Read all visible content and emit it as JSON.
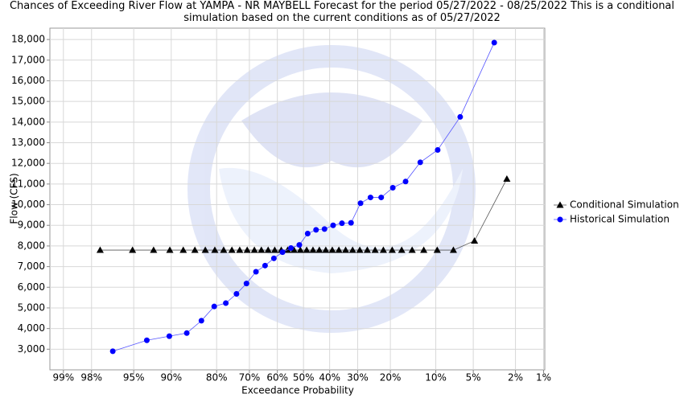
{
  "chart_data": {
    "type": "line",
    "title": "Chances of Exceeding River Flow at YAMPA - NR MAYBELL Forecast for the period 05/27/2022 - 08/25/2022 This is a conditional simulation based on the current conditions as of 05/27/2022",
    "x_label": "Exceedance Probability",
    "y_label": "Flow (CFS)",
    "x_scale": "probability",
    "xlim": [
      99.3,
      0.97
    ],
    "xticks": [
      {
        "value": 99,
        "label": "99%"
      },
      {
        "value": 98,
        "label": "98%"
      },
      {
        "value": 95,
        "label": "95%"
      },
      {
        "value": 90,
        "label": "90%"
      },
      {
        "value": 80,
        "label": "80%"
      },
      {
        "value": 70,
        "label": "70%"
      },
      {
        "value": 60,
        "label": "60%"
      },
      {
        "value": 50,
        "label": "50%"
      },
      {
        "value": 40,
        "label": "40%"
      },
      {
        "value": 30,
        "label": "30%"
      },
      {
        "value": 20,
        "label": "20%"
      },
      {
        "value": 10,
        "label": "10%"
      },
      {
        "value": 5,
        "label": "5%"
      },
      {
        "value": 2,
        "label": "2%"
      },
      {
        "value": 1,
        "label": "1%"
      }
    ],
    "ylim": [
      2000,
      18550
    ],
    "yticks": [
      {
        "value": 3000,
        "label": "3,000"
      },
      {
        "value": 4000,
        "label": "4,000"
      },
      {
        "value": 5000,
        "label": "5,000"
      },
      {
        "value": 6000,
        "label": "6,000"
      },
      {
        "value": 7000,
        "label": "7,000"
      },
      {
        "value": 8000,
        "label": "8,000"
      },
      {
        "value": 9000,
        "label": "9,000"
      },
      {
        "value": 10000,
        "label": "10,000"
      },
      {
        "value": 11000,
        "label": "11,000"
      },
      {
        "value": 12000,
        "label": "12,000"
      },
      {
        "value": 13000,
        "label": "13,000"
      },
      {
        "value": 14000,
        "label": "14,000"
      },
      {
        "value": 15000,
        "label": "15,000"
      },
      {
        "value": 16000,
        "label": "16,000"
      },
      {
        "value": 17000,
        "label": "17,000"
      },
      {
        "value": 18000,
        "label": "18,000"
      }
    ],
    "grid": true,
    "legend": "right",
    "series": [
      {
        "name": "Conditional Simulation",
        "color": "#000000",
        "line_color": "#555555",
        "marker": "triangle",
        "x": [
          97.56,
          95.12,
          92.68,
          90.24,
          87.8,
          85.37,
          82.93,
          80.49,
          78.05,
          75.61,
          73.17,
          70.73,
          68.29,
          65.85,
          63.41,
          60.98,
          58.54,
          56.1,
          53.66,
          51.22,
          48.78,
          46.34,
          43.9,
          41.46,
          39.02,
          36.59,
          34.15,
          31.71,
          29.27,
          26.83,
          24.39,
          21.95,
          19.51,
          17.07,
          14.63,
          12.2,
          9.76,
          7.32,
          4.88,
          2.44
        ],
        "values": [
          7800,
          7800,
          7800,
          7800,
          7800,
          7800,
          7800,
          7800,
          7800,
          7800,
          7800,
          7800,
          7800,
          7800,
          7800,
          7800,
          7800,
          7800,
          7800,
          7800,
          7800,
          7800,
          7800,
          7800,
          7800,
          7800,
          7800,
          7800,
          7800,
          7800,
          7800,
          7800,
          7800,
          7800,
          7800,
          7800,
          7800,
          7800,
          8250,
          11250
        ]
      },
      {
        "name": "Historical Simulation",
        "color": "#0000ff",
        "line_color": "#5555ff",
        "marker": "circle",
        "x": [
          96.77,
          93.55,
          90.32,
          87.1,
          83.87,
          80.65,
          77.42,
          74.19,
          70.97,
          67.74,
          64.52,
          61.29,
          58.06,
          54.84,
          51.61,
          48.39,
          45.16,
          41.94,
          38.71,
          35.48,
          32.26,
          29.03,
          25.81,
          22.58,
          19.35,
          16.13,
          12.9,
          9.68,
          6.45,
          3.23
        ],
        "values": [
          2900,
          3430,
          3630,
          3780,
          4380,
          5070,
          5230,
          5680,
          6180,
          6750,
          7050,
          7400,
          7700,
          7900,
          8050,
          8600,
          8780,
          8820,
          9000,
          9100,
          9120,
          10070,
          10350,
          10350,
          10820,
          11120,
          12050,
          12650,
          14250,
          17850
        ]
      }
    ]
  }
}
